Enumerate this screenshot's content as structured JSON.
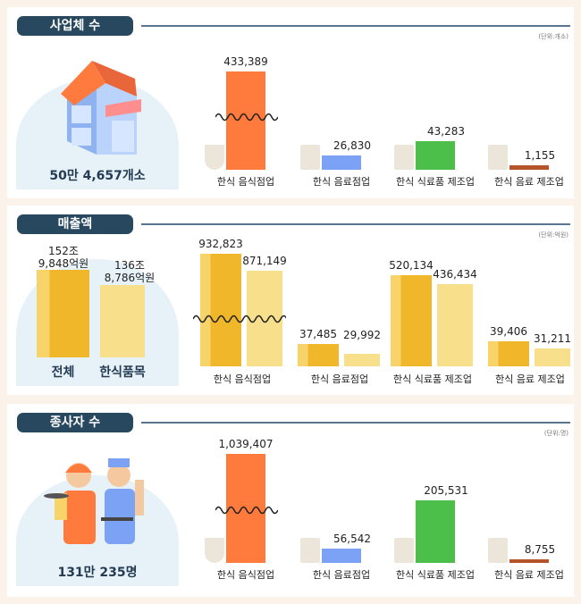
{
  "colors": {
    "orange": "#ff7a3d",
    "blue": "#7ba2f5",
    "green": "#4cbf4b",
    "brown": "#b5542a",
    "gold": "#f0b72a",
    "gold_light": "#f7df8c",
    "tag": "#27485f"
  },
  "chart_data": [
    {
      "type": "bar",
      "title": "사업체 수",
      "unit": "(단위:개소)",
      "total": "50만 4,657개소",
      "categories": [
        "한식 음식점업",
        "한식 음료점업",
        "한식 식료품 제조업",
        "한식 음료 제조업"
      ],
      "values": [
        433389,
        26830,
        43283,
        1155
      ],
      "value_labels": [
        "433,389",
        "26,830",
        "43,283",
        "1,155"
      ],
      "broken_axis": true,
      "icons": [
        "bowl-icon",
        "drink-cup-icon",
        "grinder-machine-icon",
        "beverage-can-icon"
      ]
    },
    {
      "type": "bar",
      "title": "매출액",
      "unit": "(단위:억원)",
      "summary": [
        {
          "label": "전체",
          "value_line1": "152조",
          "value_line2": "9,848억원"
        },
        {
          "label": "한식품목",
          "value_line1": "136조",
          "value_line2": "8,786억원"
        }
      ],
      "categories": [
        "한식 음식점업",
        "한식 음료점업",
        "한식 식료품 제조업",
        "한식 음료 제조업"
      ],
      "series": [
        {
          "values": [
            932823,
            37485,
            520134,
            39406
          ],
          "value_labels": [
            "932,823",
            "37,485",
            "520,134",
            "39,406"
          ]
        },
        {
          "values": [
            871149,
            29992,
            436434,
            31211
          ],
          "value_labels": [
            "871,149",
            "29,992",
            "436,434",
            "31,211"
          ]
        }
      ],
      "broken_axis": true
    },
    {
      "type": "bar",
      "title": "종사자 수",
      "unit": "(단위:명)",
      "total": "131만 235명",
      "categories": [
        "한식 음식점업",
        "한식 음료점업",
        "한식 식료품 제조업",
        "한식 음료 제조업"
      ],
      "values": [
        1039407,
        56542,
        205531,
        8755
      ],
      "value_labels": [
        "1,039,407",
        "56,542",
        "205,531",
        "8,755"
      ],
      "broken_axis": true
    }
  ]
}
